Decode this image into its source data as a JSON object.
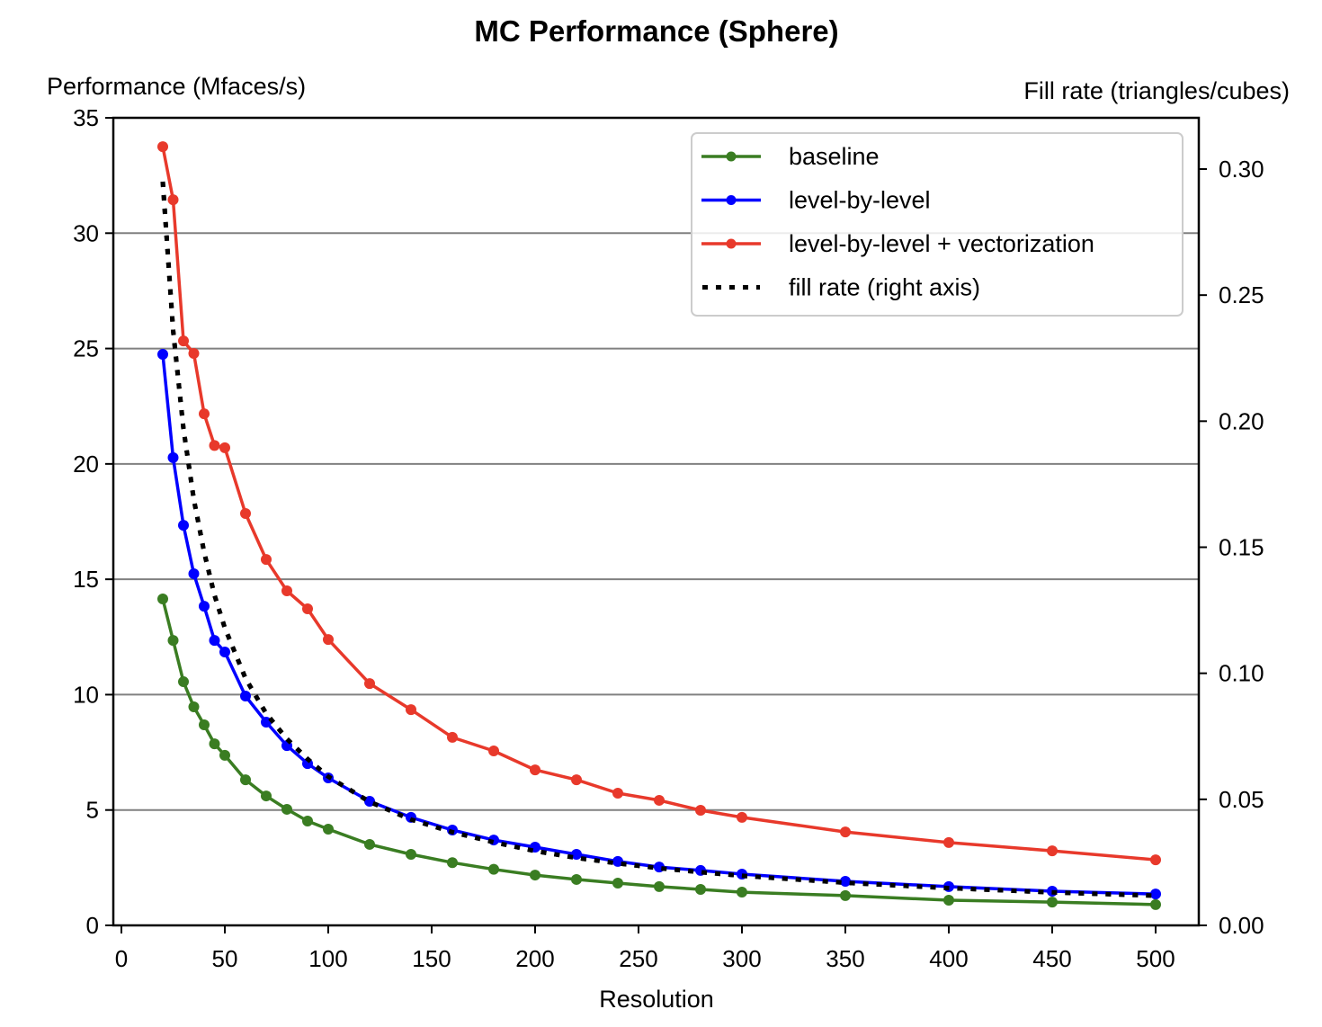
{
  "chart_data": {
    "type": "line",
    "title": "MC Performance (Sphere)",
    "xlabel": "Resolution",
    "ylabel": "Performance (Mfaces/s)",
    "y2label": "Fill rate (triangles/cubes)",
    "xlim": [
      -5,
      525
    ],
    "ylim": [
      0,
      35
    ],
    "y2lim": [
      0,
      0.32
    ],
    "xticks": [
      0,
      50,
      100,
      150,
      200,
      250,
      300,
      350,
      400,
      450,
      500
    ],
    "yticks": [
      0,
      5,
      10,
      15,
      20,
      25,
      30,
      35
    ],
    "y2ticks": [
      "0.00",
      "0.05",
      "0.10",
      "0.15",
      "0.20",
      "0.25",
      "0.30"
    ],
    "grid": "horizontal",
    "legend_position": "top-right",
    "x": [
      20,
      25,
      30,
      35,
      40,
      45,
      50,
      60,
      70,
      80,
      90,
      100,
      120,
      140,
      160,
      180,
      200,
      220,
      240,
      260,
      280,
      300,
      350,
      400,
      450,
      500
    ],
    "series": [
      {
        "name": "baseline",
        "color": "#3a7d22",
        "axis": "left",
        "style": "solid-marker",
        "values": [
          14.15,
          12.35,
          10.56,
          9.47,
          8.69,
          7.87,
          7.37,
          6.31,
          5.61,
          5.03,
          4.52,
          4.17,
          3.51,
          3.08,
          2.72,
          2.43,
          2.18,
          1.99,
          1.83,
          1.68,
          1.56,
          1.44,
          1.29,
          1.09,
          1.01,
          0.9
        ]
      },
      {
        "name": "level-by-level",
        "color": "#0000ff",
        "axis": "left",
        "style": "solid-marker",
        "values": [
          24.75,
          20.27,
          17.34,
          15.24,
          13.83,
          12.35,
          11.85,
          9.94,
          8.81,
          7.79,
          7.01,
          6.39,
          5.38,
          4.68,
          4.13,
          3.7,
          3.39,
          3.08,
          2.77,
          2.53,
          2.38,
          2.22,
          1.91,
          1.68,
          1.48,
          1.36
        ]
      },
      {
        "name": "level-by-level + vectorization",
        "color": "#e8392b",
        "axis": "left",
        "style": "solid-marker",
        "values": [
          33.75,
          31.45,
          25.33,
          24.79,
          22.17,
          20.8,
          20.7,
          17.85,
          15.86,
          14.5,
          13.72,
          12.39,
          10.48,
          9.35,
          8.15,
          7.56,
          6.74,
          6.31,
          5.73,
          5.42,
          4.99,
          4.68,
          4.05,
          3.59,
          3.23,
          2.84
        ]
      },
      {
        "name": "fill rate (right axis)",
        "color": "#000000",
        "axis": "right",
        "style": "dotted",
        "values": [
          0.295,
          0.236,
          0.197,
          0.169,
          0.148,
          0.131,
          0.118,
          0.098,
          0.084,
          0.074,
          0.066,
          0.059,
          0.049,
          0.042,
          0.037,
          0.033,
          0.0295,
          0.0268,
          0.0246,
          0.0227,
          0.0211,
          0.0197,
          0.0169,
          0.0148,
          0.0131,
          0.0118
        ]
      }
    ]
  }
}
